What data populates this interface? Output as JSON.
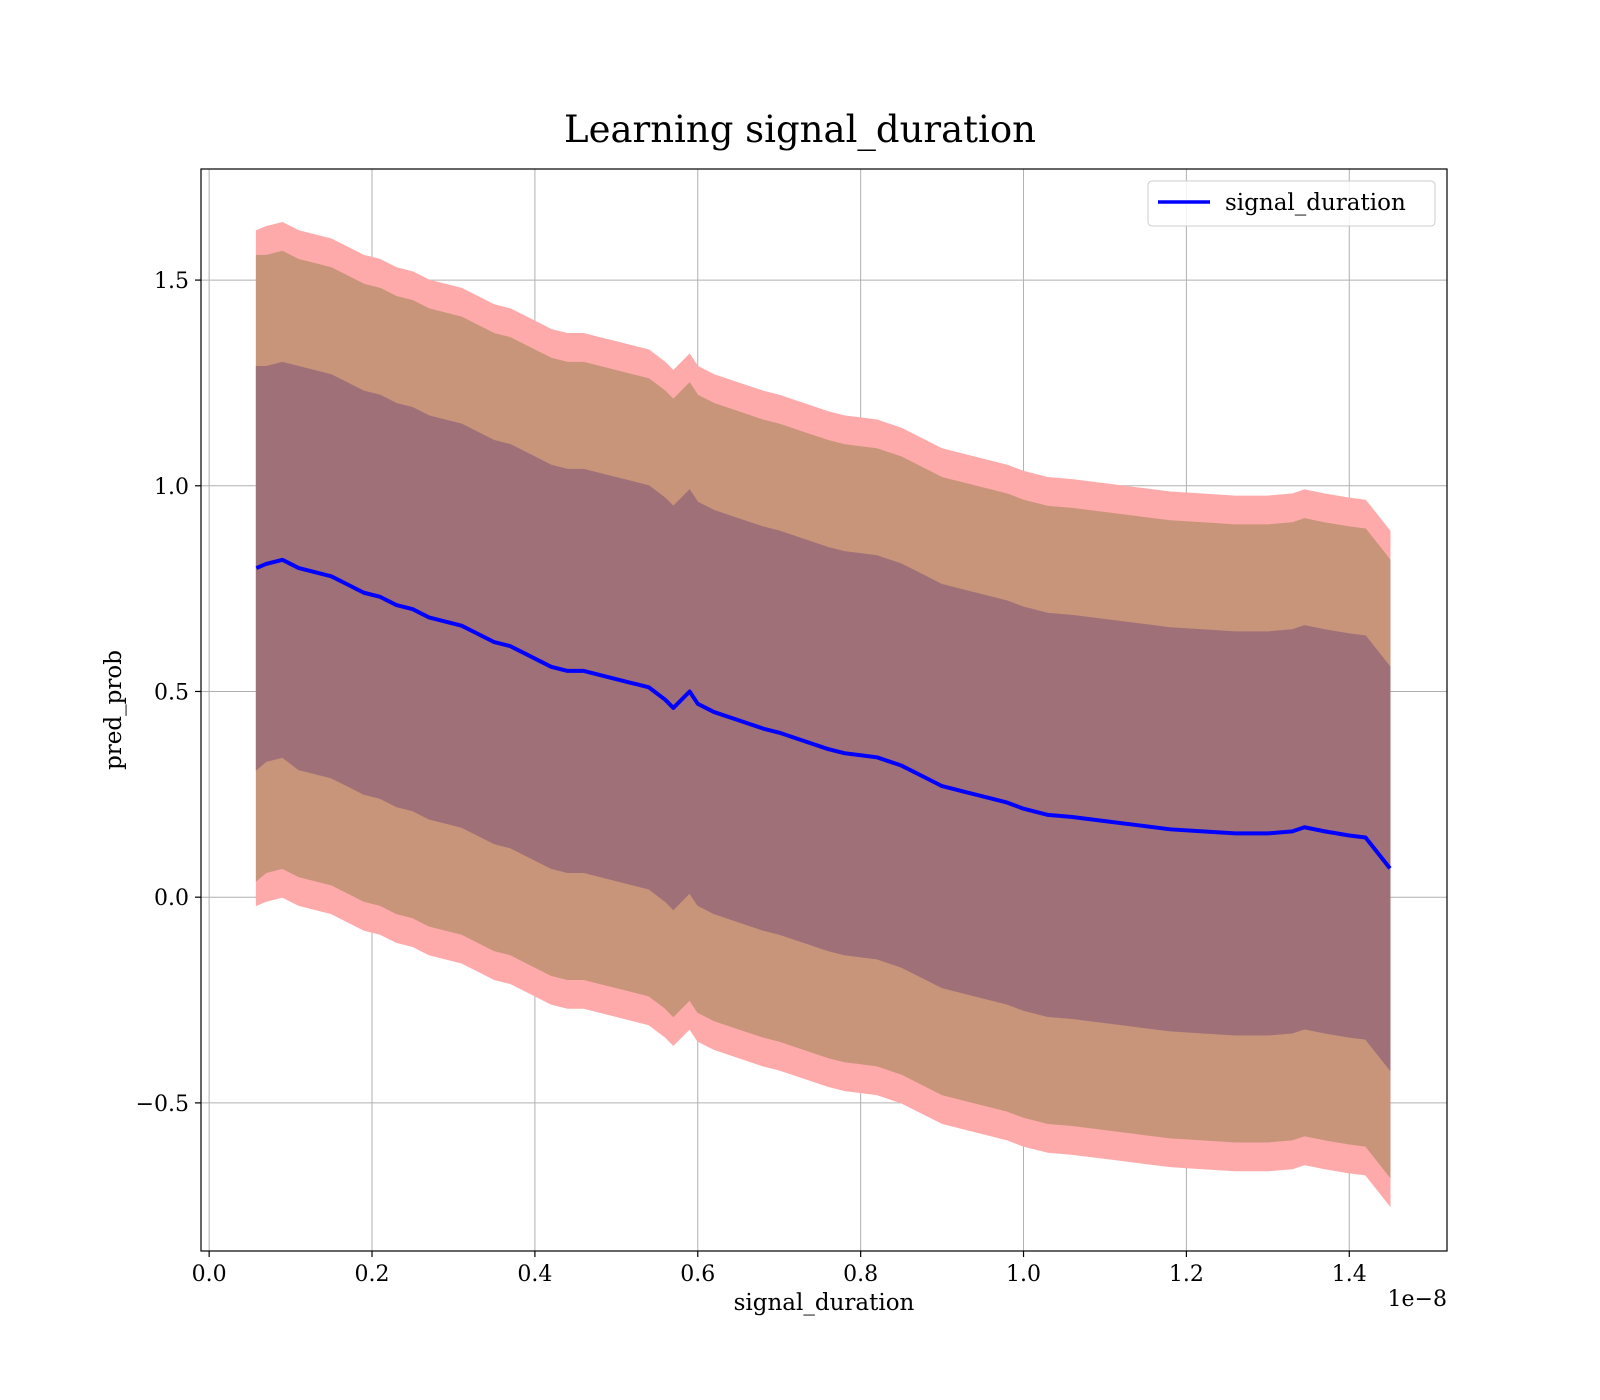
{
  "chart_data": {
    "type": "line",
    "title": "Learning signal_duration",
    "xlabel": "signal_duration",
    "ylabel": "pred_prob",
    "x_offset_text": "1e−8",
    "xlim": [
      -0.01,
      1.52
    ],
    "ylim": [
      -0.86,
      1.77
    ],
    "grid": true,
    "legend": {
      "placement": "top-right"
    },
    "x_ticks": [
      {
        "value": 0.0,
        "label": "0.0"
      },
      {
        "value": 0.2,
        "label": "0.2"
      },
      {
        "value": 0.4,
        "label": "0.4"
      },
      {
        "value": 0.6,
        "label": "0.6"
      },
      {
        "value": 0.8,
        "label": "0.8"
      },
      {
        "value": 1.0,
        "label": "1.0"
      },
      {
        "value": 1.2,
        "label": "1.2"
      },
      {
        "value": 1.4,
        "label": "1.4"
      }
    ],
    "y_ticks": [
      {
        "value": -0.5,
        "label": "−0.5"
      },
      {
        "value": 0.0,
        "label": "0.0"
      },
      {
        "value": 0.5,
        "label": "0.5"
      },
      {
        "value": 1.0,
        "label": "1.0"
      },
      {
        "value": 1.5,
        "label": "1.5"
      }
    ],
    "series": [
      {
        "name": "signal_duration",
        "color": "#0000ff",
        "x": [
          0.058,
          0.07,
          0.09,
          0.11,
          0.13,
          0.15,
          0.17,
          0.19,
          0.21,
          0.23,
          0.25,
          0.27,
          0.29,
          0.31,
          0.33,
          0.35,
          0.37,
          0.39,
          0.4,
          0.42,
          0.44,
          0.46,
          0.48,
          0.5,
          0.52,
          0.54,
          0.56,
          0.57,
          0.59,
          0.6,
          0.62,
          0.65,
          0.68,
          0.7,
          0.73,
          0.76,
          0.78,
          0.8,
          0.82,
          0.85,
          0.88,
          0.9,
          0.93,
          0.96,
          0.98,
          1.0,
          1.03,
          1.06,
          1.1,
          1.14,
          1.18,
          1.22,
          1.26,
          1.3,
          1.33,
          1.345,
          1.37,
          1.4,
          1.42,
          1.45
        ],
        "values": [
          0.8,
          0.81,
          0.82,
          0.8,
          0.79,
          0.78,
          0.76,
          0.74,
          0.73,
          0.71,
          0.7,
          0.68,
          0.67,
          0.66,
          0.64,
          0.62,
          0.61,
          0.59,
          0.58,
          0.56,
          0.55,
          0.55,
          0.54,
          0.53,
          0.52,
          0.51,
          0.48,
          0.46,
          0.5,
          0.47,
          0.45,
          0.43,
          0.41,
          0.4,
          0.38,
          0.36,
          0.35,
          0.345,
          0.34,
          0.32,
          0.29,
          0.27,
          0.255,
          0.24,
          0.23,
          0.215,
          0.2,
          0.195,
          0.185,
          0.175,
          0.165,
          0.16,
          0.155,
          0.155,
          0.16,
          0.17,
          0.16,
          0.15,
          0.145,
          0.07
        ],
        "bands": [
          {
            "sigma": 1,
            "color": "#a07078",
            "width": [
              0.49,
              0.48,
              0.48,
              0.49,
              0.49,
              0.49,
              0.49,
              0.49,
              0.49,
              0.49,
              0.49,
              0.49,
              0.49,
              0.49,
              0.49,
              0.49,
              0.49,
              0.49,
              0.49,
              0.49,
              0.49,
              0.49,
              0.49,
              0.49,
              0.49,
              0.49,
              0.49,
              0.49,
              0.49,
              0.49,
              0.49,
              0.49,
              0.49,
              0.49,
              0.49,
              0.49,
              0.49,
              0.49,
              0.49,
              0.49,
              0.49,
              0.49,
              0.49,
              0.49,
              0.49,
              0.49,
              0.49,
              0.49,
              0.49,
              0.49,
              0.49,
              0.49,
              0.49,
              0.49,
              0.49,
              0.49,
              0.49,
              0.49,
              0.49,
              0.49
            ]
          },
          {
            "sigma": 2,
            "color": "#c8957a",
            "width": [
              0.76,
              0.75,
              0.75,
              0.75,
              0.75,
              0.75,
              0.75,
              0.75,
              0.75,
              0.75,
              0.75,
              0.75,
              0.75,
              0.75,
              0.75,
              0.75,
              0.75,
              0.75,
              0.75,
              0.75,
              0.75,
              0.75,
              0.75,
              0.75,
              0.75,
              0.75,
              0.75,
              0.75,
              0.75,
              0.75,
              0.75,
              0.75,
              0.75,
              0.75,
              0.75,
              0.75,
              0.75,
              0.75,
              0.75,
              0.75,
              0.75,
              0.75,
              0.75,
              0.75,
              0.75,
              0.75,
              0.75,
              0.75,
              0.75,
              0.75,
              0.75,
              0.75,
              0.75,
              0.75,
              0.75,
              0.75,
              0.75,
              0.75,
              0.75,
              0.75
            ]
          },
          {
            "sigma": 3,
            "color": "#ffaaaa",
            "width": [
              0.82,
              0.82,
              0.82,
              0.82,
              0.82,
              0.82,
              0.82,
              0.82,
              0.82,
              0.82,
              0.82,
              0.82,
              0.82,
              0.82,
              0.82,
              0.82,
              0.82,
              0.82,
              0.82,
              0.82,
              0.82,
              0.82,
              0.82,
              0.82,
              0.82,
              0.82,
              0.82,
              0.82,
              0.82,
              0.82,
              0.82,
              0.82,
              0.82,
              0.82,
              0.82,
              0.82,
              0.82,
              0.82,
              0.82,
              0.82,
              0.82,
              0.82,
              0.82,
              0.82,
              0.82,
              0.82,
              0.82,
              0.82,
              0.82,
              0.82,
              0.82,
              0.82,
              0.82,
              0.82,
              0.82,
              0.82,
              0.82,
              0.82,
              0.82,
              0.82
            ]
          }
        ]
      }
    ]
  }
}
